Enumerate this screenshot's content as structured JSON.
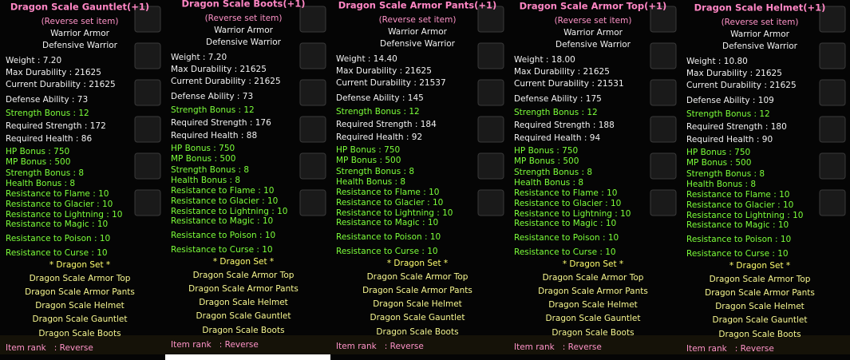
{
  "panels": [
    {
      "title": "Dragon Scale Gauntlet(+1)",
      "set_tag": "(Reverse set item)",
      "armor_class": "Warrior Armor",
      "job": "Defensive Warrior",
      "stats": [
        "Weight : 7.20",
        "Max Durability : 21625",
        "Current Durability : 21625",
        "Defense Ability : 73"
      ],
      "upgrade_bonus": "Strength Bonus : 12",
      "requirements": [
        "Required Strength : 172",
        "Required Health : 86"
      ],
      "bonuses": [
        "HP Bonus : 750",
        "MP Bonus : 500",
        "Strength Bonus : 8",
        "Health Bonus : 8",
        "Resistance to Flame : 10",
        "Resistance to Glacier : 10",
        "Resistance to Lightning : 10",
        "Resistance to Magic : 10",
        "Resistance to Poison : 10",
        "Resistance to Curse : 10"
      ],
      "set_title": "* Dragon Set *",
      "set_items": [
        "Dragon Scale Armor Top",
        "Dragon Scale Armor Pants",
        "Dragon Scale Helmet",
        "Dragon Scale Gauntlet",
        "Dragon Scale Boots"
      ],
      "rank": "Item rank   : Reverse"
    },
    {
      "title": "Dragon Scale Boots(+1)",
      "set_tag": "(Reverse set item)",
      "armor_class": "Warrior Armor",
      "job": "Defensive Warrior",
      "stats": [
        "Weight : 7.20",
        "Max Durability : 21625",
        "Current Durability : 21625",
        "Defense Ability : 73"
      ],
      "upgrade_bonus": "Strength Bonus : 12",
      "requirements": [
        "Required Strength : 176",
        "Required Health : 88"
      ],
      "bonuses": [
        "HP Bonus : 750",
        "MP Bonus : 500",
        "Strength Bonus : 8",
        "Health Bonus : 8",
        "Resistance to Flame : 10",
        "Resistance to Glacier : 10",
        "Resistance to Lightning : 10",
        "Resistance to Magic : 10",
        "Resistance to Poison : 10",
        "Resistance to Curse : 10"
      ],
      "set_title": "* Dragon Set *",
      "set_items": [
        "Dragon Scale Armor Top",
        "Dragon Scale Armor Pants",
        "Dragon Scale Helmet",
        "Dragon Scale Gauntlet",
        "Dragon Scale Boots"
      ],
      "rank": "Item rank   : Reverse"
    },
    {
      "title": "Dragon Scale Armor Pants(+1)",
      "set_tag": "(Reverse set item)",
      "armor_class": "Warrior Armor",
      "job": "Defensive Warrior",
      "stats": [
        "Weight : 14.40",
        "Max Durability : 21625",
        "Current Durability : 21537",
        "Defense Ability : 145"
      ],
      "upgrade_bonus": "Strength Bonus : 12",
      "requirements": [
        "Required Strength : 184",
        "Required Health : 92"
      ],
      "bonuses": [
        "HP Bonus : 750",
        "MP Bonus : 500",
        "Strength Bonus : 8",
        "Health Bonus : 8",
        "Resistance to Flame : 10",
        "Resistance to Glacier : 10",
        "Resistance to Lightning : 10",
        "Resistance to Magic : 10",
        "Resistance to Poison : 10",
        "Resistance to Curse : 10"
      ],
      "set_title": "* Dragon Set *",
      "set_items": [
        "Dragon Scale Armor Top",
        "Dragon Scale Armor Pants",
        "Dragon Scale Helmet",
        "Dragon Scale Gauntlet",
        "Dragon Scale Boots"
      ],
      "rank": "Item rank   : Reverse"
    },
    {
      "title": "Dragon Scale Armor Top(+1)",
      "set_tag": "(Reverse set item)",
      "armor_class": "Warrior Armor",
      "job": "Defensive Warrior",
      "stats": [
        "Weight : 18.00",
        "Max Durability : 21625",
        "Current Durability : 21531",
        "Defense Ability : 175"
      ],
      "upgrade_bonus": "Strength Bonus : 12",
      "requirements": [
        "Required Strength : 188",
        "Required Health : 94"
      ],
      "bonuses": [
        "HP Bonus : 750",
        "MP Bonus : 500",
        "Strength Bonus : 8",
        "Health Bonus : 8",
        "Resistance to Flame : 10",
        "Resistance to Glacier : 10",
        "Resistance to Lightning : 10",
        "Resistance to Magic : 10",
        "Resistance to Poison : 10",
        "Resistance to Curse : 10"
      ],
      "set_title": "* Dragon Set *",
      "set_items": [
        "Dragon Scale Armor Top",
        "Dragon Scale Armor Pants",
        "Dragon Scale Helmet",
        "Dragon Scale Gauntlet",
        "Dragon Scale Boots"
      ],
      "rank": "Item rank   : Reverse"
    },
    {
      "title": "Dragon Scale Helmet(+1)",
      "set_tag": "(Reverse set item)",
      "armor_class": "Warrior Armor",
      "job": "Defensive Warrior",
      "stats": [
        "Weight : 10.80",
        "Max Durability : 21625",
        "Current Durability : 21625",
        "Defense Ability : 109"
      ],
      "upgrade_bonus": "Strength Bonus : 12",
      "requirements": [
        "Required Strength : 180",
        "Required Health : 90"
      ],
      "bonuses": [
        "HP Bonus : 750",
        "MP Bonus : 500",
        "Strength Bonus : 8",
        "Health Bonus : 8",
        "Resistance to Flame : 10",
        "Resistance to Glacier : 10",
        "Resistance to Lightning : 10",
        "Resistance to Magic : 10",
        "Resistance to Poison : 10",
        "Resistance to Curse : 10"
      ],
      "set_title": "* Dragon Set *",
      "set_items": [
        "Dragon Scale Armor Top",
        "Dragon Scale Armor Pants",
        "Dragon Scale Helmet",
        "Dragon Scale Gauntlet",
        "Dragon Scale Boots"
      ],
      "rank": "Item rank   : Reverse"
    }
  ]
}
